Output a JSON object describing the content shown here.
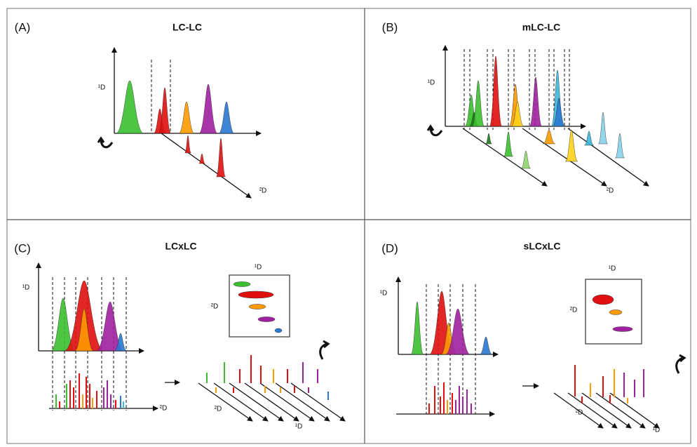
{
  "panels": [
    {
      "label": "(A)",
      "title": "LC-LC",
      "axis_labels": [
        "¹D",
        "²D"
      ]
    },
    {
      "label": "(B)",
      "title": "mLC-LC",
      "axis_labels": [
        "¹D",
        "²D"
      ]
    },
    {
      "label": "(C)",
      "title": "LCxLC",
      "axis_labels": [
        "¹D",
        "²D",
        "¹D",
        "²D",
        "²D",
        "¹D"
      ]
    },
    {
      "label": "(D)",
      "title": "sLCxLC",
      "axis_labels": [
        "¹D",
        "¹D",
        "²D",
        "²D",
        "¹D"
      ]
    }
  ]
}
